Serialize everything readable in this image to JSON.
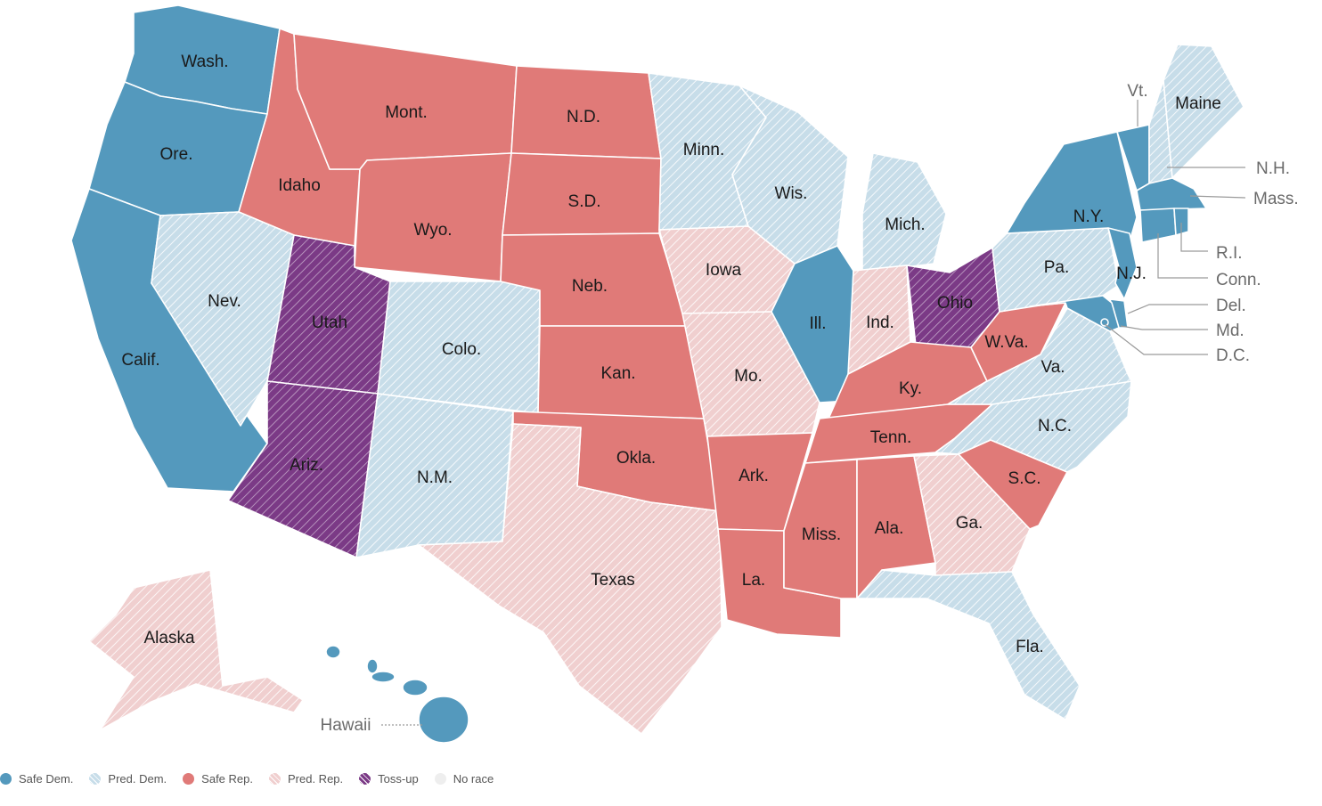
{
  "colors": {
    "safe_dem": "#5499bd",
    "pred_dem": "#c7dde9",
    "safe_rep": "#e07a78",
    "pred_rep": "#f0cfcf",
    "toss_up": "#7b3a86",
    "no_race": "#eeeeee"
  },
  "legend": [
    {
      "key": "safe_dem",
      "label": "Safe Dem.",
      "hatched": false
    },
    {
      "key": "pred_dem",
      "label": "Pred. Dem.",
      "hatched": true
    },
    {
      "key": "safe_rep",
      "label": "Safe Rep.",
      "hatched": false
    },
    {
      "key": "pred_rep",
      "label": "Pred. Rep.",
      "hatched": true
    },
    {
      "key": "toss_up",
      "label": "Toss-up",
      "hatched": true
    },
    {
      "key": "no_race",
      "label": "No race",
      "hatched": false
    }
  ],
  "states": {
    "wa": {
      "label": "Wash.",
      "rating": "safe_dem"
    },
    "or": {
      "label": "Ore.",
      "rating": "safe_dem"
    },
    "ca": {
      "label": "Calif.",
      "rating": "safe_dem"
    },
    "id": {
      "label": "Idaho",
      "rating": "safe_rep"
    },
    "nv": {
      "label": "Nev.",
      "rating": "pred_dem"
    },
    "mt": {
      "label": "Mont.",
      "rating": "safe_rep"
    },
    "wy": {
      "label": "Wyo.",
      "rating": "safe_rep"
    },
    "ut": {
      "label": "Utah",
      "rating": "toss_up"
    },
    "az": {
      "label": "Ariz.",
      "rating": "toss_up"
    },
    "co": {
      "label": "Colo.",
      "rating": "pred_dem"
    },
    "nm": {
      "label": "N.M.",
      "rating": "pred_dem"
    },
    "nd": {
      "label": "N.D.",
      "rating": "safe_rep"
    },
    "sd": {
      "label": "S.D.",
      "rating": "safe_rep"
    },
    "ne": {
      "label": "Neb.",
      "rating": "safe_rep"
    },
    "ks": {
      "label": "Kan.",
      "rating": "safe_rep"
    },
    "ok": {
      "label": "Okla.",
      "rating": "safe_rep"
    },
    "tx": {
      "label": "Texas",
      "rating": "pred_rep"
    },
    "mn": {
      "label": "Minn.",
      "rating": "pred_dem"
    },
    "ia": {
      "label": "Iowa",
      "rating": "pred_rep"
    },
    "mo": {
      "label": "Mo.",
      "rating": "pred_rep"
    },
    "ar": {
      "label": "Ark.",
      "rating": "safe_rep"
    },
    "la": {
      "label": "La.",
      "rating": "safe_rep"
    },
    "wi": {
      "label": "Wis.",
      "rating": "pred_dem"
    },
    "il": {
      "label": "Ill.",
      "rating": "safe_dem"
    },
    "mi": {
      "label": "Mich.",
      "rating": "pred_dem"
    },
    "in": {
      "label": "Ind.",
      "rating": "pred_rep"
    },
    "oh": {
      "label": "Ohio",
      "rating": "toss_up"
    },
    "ky": {
      "label": "Ky.",
      "rating": "safe_rep"
    },
    "tn": {
      "label": "Tenn.",
      "rating": "safe_rep"
    },
    "ms": {
      "label": "Miss.",
      "rating": "safe_rep"
    },
    "al": {
      "label": "Ala.",
      "rating": "safe_rep"
    },
    "ga": {
      "label": "Ga.",
      "rating": "pred_rep"
    },
    "fl": {
      "label": "Fla.",
      "rating": "pred_dem"
    },
    "sc": {
      "label": "S.C.",
      "rating": "safe_rep"
    },
    "nc": {
      "label": "N.C.",
      "rating": "pred_dem"
    },
    "va": {
      "label": "Va.",
      "rating": "pred_dem"
    },
    "wv": {
      "label": "W.Va.",
      "rating": "safe_rep"
    },
    "pa": {
      "label": "Pa.",
      "rating": "pred_dem"
    },
    "ny": {
      "label": "N.Y.",
      "rating": "safe_dem"
    },
    "vt": {
      "label": "Vt.",
      "rating": "safe_dem"
    },
    "nh": {
      "label": "N.H.",
      "rating": "pred_dem"
    },
    "me": {
      "label": "Maine",
      "rating": "pred_dem"
    },
    "ma": {
      "label": "Mass.",
      "rating": "safe_dem"
    },
    "ri": {
      "label": "R.I.",
      "rating": "safe_dem"
    },
    "ct": {
      "label": "Conn.",
      "rating": "safe_dem"
    },
    "nj": {
      "label": "N.J.",
      "rating": "safe_dem"
    },
    "de": {
      "label": "Del.",
      "rating": "safe_dem"
    },
    "md": {
      "label": "Md.",
      "rating": "safe_dem"
    },
    "dc": {
      "label": "D.C.",
      "rating": "safe_dem"
    },
    "ak": {
      "label": "Alaska",
      "rating": "pred_rep"
    },
    "hi": {
      "label": "Hawaii",
      "rating": "safe_dem"
    }
  }
}
